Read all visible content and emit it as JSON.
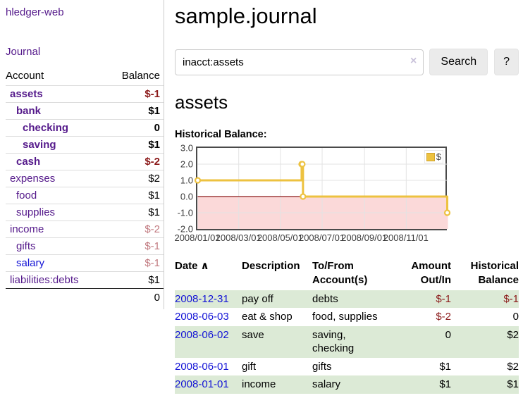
{
  "app_title": "hledger-web",
  "sidebar": {
    "journal_link": "Journal",
    "table": {
      "col_account": "Account",
      "col_balance": "Balance",
      "rows": [
        {
          "name": "assets",
          "balance": "$-1"
        },
        {
          "name": "bank",
          "balance": "$1"
        },
        {
          "name": "checking",
          "balance": "0"
        },
        {
          "name": "saving",
          "balance": "$1"
        },
        {
          "name": "cash",
          "balance": "$-2"
        },
        {
          "name": "expenses",
          "balance": "$2"
        },
        {
          "name": "food",
          "balance": "$1"
        },
        {
          "name": "supplies",
          "balance": "$1"
        },
        {
          "name": "income",
          "balance": "$-2"
        },
        {
          "name": "gifts",
          "balance": "$-1"
        },
        {
          "name": "salary",
          "balance": "$-1"
        },
        {
          "name": "liabilities:debts",
          "balance": "$1"
        }
      ],
      "total": "0"
    }
  },
  "main": {
    "title": "sample.journal",
    "search": {
      "value": "inacct:assets",
      "clear_icon": "×",
      "search_button": "Search",
      "help_button": "?"
    },
    "account_heading": "assets"
  },
  "chart_data": {
    "type": "line",
    "title": "Historical Balance:",
    "step": true,
    "series": [
      {
        "name": "$",
        "color": "#edc240",
        "points": [
          [
            "2008-01-01",
            1
          ],
          [
            "2008-06-01",
            2
          ],
          [
            "2008-06-02",
            2
          ],
          [
            "2008-06-03",
            0
          ],
          [
            "2008-12-31",
            -1
          ]
        ]
      }
    ],
    "xlim": [
      "2008-01-01",
      "2009-01-01"
    ],
    "ylim": [
      -2,
      3
    ],
    "yticks": [
      "3.0",
      "2.0",
      "1.0",
      "0.0",
      "-1.0",
      "-2.0"
    ],
    "xticks": [
      "2008/01/01",
      "2008/03/01",
      "2008/05/01",
      "2008/07/01",
      "2008/09/01",
      "2008/11/01"
    ],
    "grid": true,
    "grid_color": "#e3e3e3",
    "negative_region_color": "#fbd9d9",
    "zero_line_color": "#8b1a1a",
    "legend_position": "top-right"
  },
  "register": {
    "headers": {
      "date": "Date",
      "sort_icon": "∧",
      "description": "Description",
      "accounts": "To/From Account(s)",
      "amount": "Amount Out/In",
      "balance": "Historical Balance"
    },
    "rows": [
      {
        "date": "2008-12-31",
        "description": "pay off",
        "accounts": "debts",
        "amount": "$-1",
        "balance": "$-1"
      },
      {
        "date": "2008-06-03",
        "description": "eat & shop",
        "accounts": "food, supplies",
        "amount": "$-2",
        "balance": "0"
      },
      {
        "date": "2008-06-02",
        "description": "save",
        "accounts": "saving, checking",
        "amount": "0",
        "balance": "$2"
      },
      {
        "date": "2008-06-01",
        "description": "gift",
        "accounts": "gifts",
        "amount": "$1",
        "balance": "$2"
      },
      {
        "date": "2008-01-01",
        "description": "income",
        "accounts": "salary",
        "amount": "$1",
        "balance": "$1"
      }
    ]
  }
}
